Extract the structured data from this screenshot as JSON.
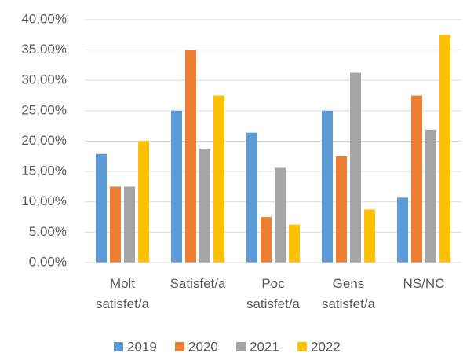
{
  "chart_data": {
    "type": "bar",
    "categories": [
      "Molt satisfet/a",
      "Satisfet/a",
      "Poc satisfet/a",
      "Gens satisfet/a",
      "NS/NC"
    ],
    "series": [
      {
        "name": "2019",
        "color": "#5b9bd5",
        "values": [
          17.9,
          25,
          21.4,
          25,
          10.7
        ]
      },
      {
        "name": "2020",
        "color": "#ed7d31",
        "values": [
          12.5,
          35,
          7.5,
          17.5,
          27.5
        ]
      },
      {
        "name": "2021",
        "color": "#a5a5a5",
        "values": [
          12.5,
          18.75,
          15.6,
          31.25,
          21.9
        ]
      },
      {
        "name": "2022",
        "color": "#ffc000",
        "values": [
          20,
          27.5,
          6.25,
          8.75,
          37.5
        ]
      }
    ],
    "ylim": [
      0,
      40
    ],
    "yticks": [
      {
        "value": 0,
        "label": "0,00%"
      },
      {
        "value": 5,
        "label": "5,00%"
      },
      {
        "value": 10,
        "label": "10,00%"
      },
      {
        "value": 15,
        "label": "15,00%"
      },
      {
        "value": 20,
        "label": "20,00%"
      },
      {
        "value": 25,
        "label": "25,00%"
      },
      {
        "value": 30,
        "label": "30,00%"
      },
      {
        "value": 35,
        "label": "35,00%"
      },
      {
        "value": 40,
        "label": "40,00%"
      }
    ],
    "grid": true,
    "legend": "bottom"
  }
}
